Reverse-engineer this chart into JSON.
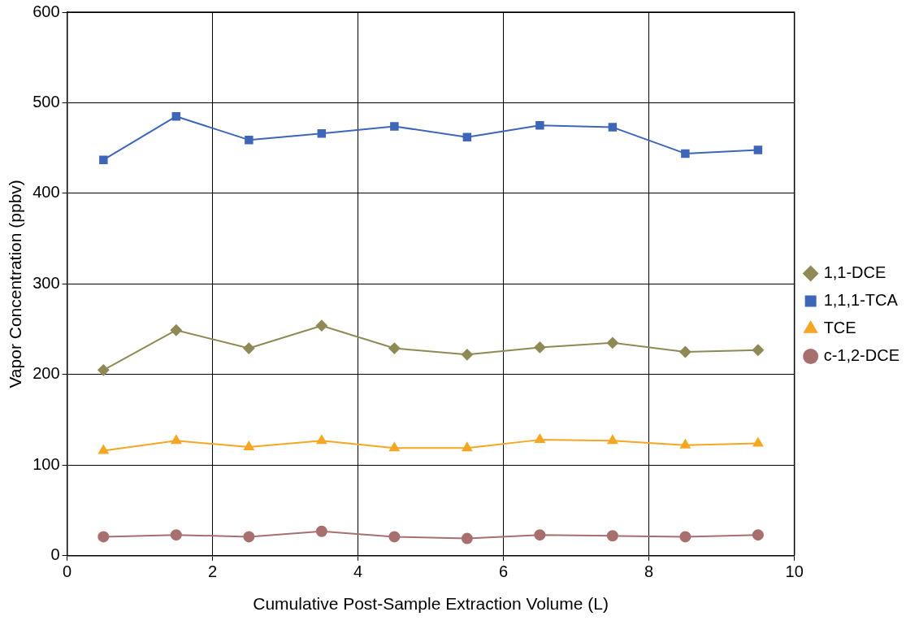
{
  "chart_data": {
    "type": "line",
    "xlabel": "Cumulative Post-Sample Extraction Volume (L)",
    "ylabel": "Vapor Concentration (ppbv)",
    "x": [
      0.5,
      1.5,
      2.5,
      3.5,
      4.5,
      5.5,
      6.5,
      7.5,
      8.5,
      9.5
    ],
    "xlim": [
      0,
      10
    ],
    "xticks": [
      0,
      2,
      4,
      6,
      8,
      10
    ],
    "ylim": [
      0,
      600
    ],
    "yticks": [
      0,
      100,
      200,
      300,
      400,
      500,
      600
    ],
    "grid": true,
    "legend": "right",
    "line_style": "solid",
    "series": [
      {
        "name": "1,1-DCE",
        "color": "#8f8a55",
        "marker": "diamond",
        "values": [
          205,
          249,
          229,
          254,
          229,
          222,
          230,
          235,
          225,
          227
        ]
      },
      {
        "name": "1,1,1-TCA",
        "color": "#3e66b8",
        "marker": "square",
        "values": [
          437,
          485,
          459,
          466,
          474,
          462,
          475,
          473,
          444,
          448
        ]
      },
      {
        "name": "TCE",
        "color": "#f5a623",
        "marker": "triangle",
        "values": [
          116,
          127,
          120,
          127,
          119,
          119,
          128,
          127,
          122,
          124
        ]
      },
      {
        "name": "c-1,2-DCE",
        "color": "#a86f6f",
        "marker": "circle",
        "values": [
          21,
          23,
          21,
          27,
          21,
          19,
          23,
          22,
          21,
          23
        ]
      }
    ]
  }
}
